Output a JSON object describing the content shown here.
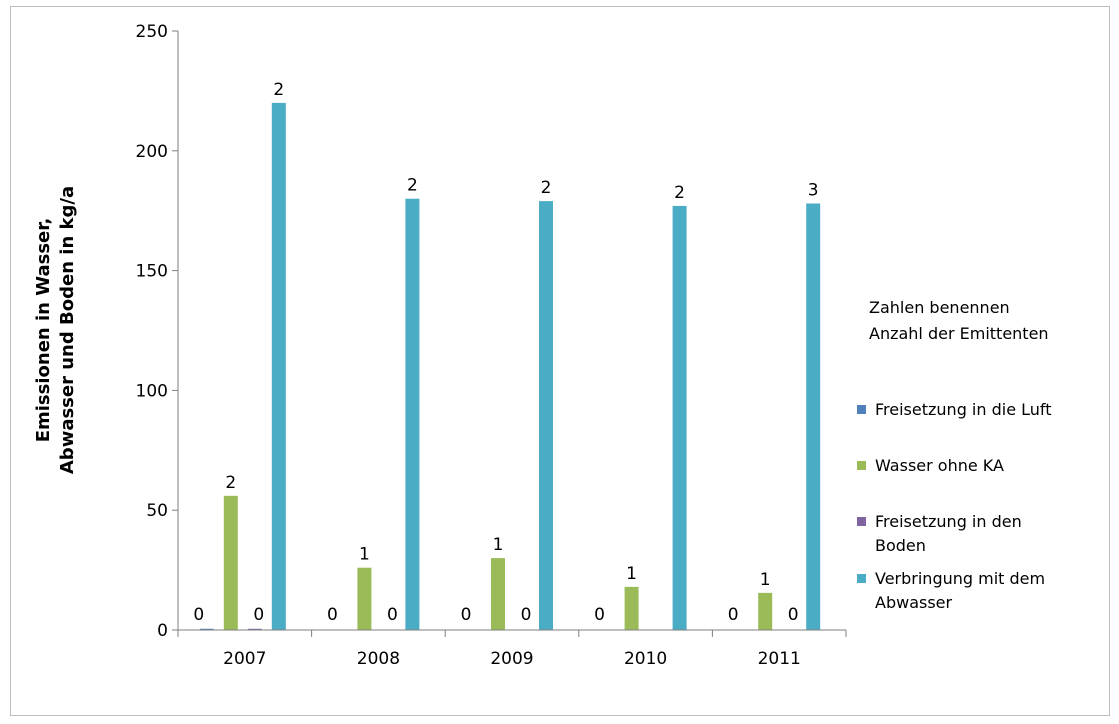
{
  "chart_data": {
    "type": "bar",
    "categories": [
      "2007",
      "2008",
      "2009",
      "2010",
      "2011"
    ],
    "ylim": [
      0,
      250
    ],
    "yticks": [
      0,
      50,
      100,
      150,
      200,
      250
    ],
    "ylabel_lines": [
      "Emissionen in Wasser,",
      "Abwasser und Boden in kg/a"
    ],
    "legend_note": [
      "Zahlen benennen",
      "Anzahl der Emittenten"
    ],
    "series": [
      {
        "name": "Freisetzung in die Luft",
        "name_lines": [
          "Freisetzung in die Luft"
        ],
        "color": "#4f81bd",
        "values": [
          0.5,
          0,
          0,
          0,
          0
        ],
        "labels": [
          "0",
          "0",
          "0",
          "0",
          "0"
        ]
      },
      {
        "name": "Wasser ohne KA",
        "name_lines": [
          "Wasser ohne KA"
        ],
        "color": "#9bbb59",
        "values": [
          56,
          26,
          30,
          18,
          15.5
        ],
        "labels": [
          "2",
          "1",
          "1",
          "1",
          "1"
        ]
      },
      {
        "name": "Freisetzung in den Boden",
        "name_lines": [
          "Freisetzung in den",
          "Boden"
        ],
        "color": "#8064a2",
        "values": [
          0.5,
          0,
          0,
          0,
          0
        ],
        "labels": [
          "0",
          "0",
          "0",
          "",
          "0"
        ]
      },
      {
        "name": "Verbringung mit dem Abwasser",
        "name_lines": [
          "Verbringung mit dem",
          "Abwasser"
        ],
        "color": "#4bacc6",
        "values": [
          220,
          180,
          179,
          177,
          178
        ],
        "labels": [
          "2",
          "2",
          "2",
          "2",
          "3"
        ]
      }
    ],
    "grid": false,
    "legend_position": "right"
  }
}
